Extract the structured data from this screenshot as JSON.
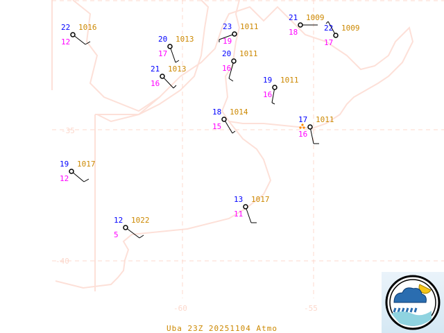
{
  "map": {
    "grid_labels": {
      "lon": [
        "-60",
        "-55"
      ],
      "lat": [
        "-35",
        "-40"
      ]
    },
    "colors": {
      "temperature": "#0000ff",
      "pressure": "#cc8800",
      "dewpoint": "#ff00ff",
      "coast": "#fde0d8",
      "grid": "#fcd8cc",
      "barb": "#000000",
      "weather": "#ff8800"
    },
    "stations": [
      {
        "temperature": "22",
        "pressure": "1016",
        "dewpoint": "12"
      },
      {
        "temperature": "20",
        "pressure": "1013",
        "dewpoint": "17"
      },
      {
        "temperature": "21",
        "pressure": "1013",
        "dewpoint": "16"
      },
      {
        "temperature": "23",
        "pressure": "1011",
        "dewpoint": "19"
      },
      {
        "temperature": "20",
        "pressure": "1011",
        "dewpoint": "16"
      },
      {
        "temperature": "19",
        "pressure": "1011",
        "dewpoint": "16"
      },
      {
        "temperature": "18",
        "pressure": "1014",
        "dewpoint": "15"
      },
      {
        "temperature": "21",
        "pressure": "1009",
        "dewpoint": "18"
      },
      {
        "temperature": "22",
        "pressure": "1009",
        "dewpoint": "17"
      },
      {
        "temperature": "17",
        "pressure": "1011",
        "dewpoint": "16",
        "weather": "rain"
      },
      {
        "temperature": "19",
        "pressure": "1017",
        "dewpoint": "12"
      },
      {
        "temperature": "12",
        "pressure": "1022",
        "dewpoint": "5"
      },
      {
        "temperature": "13",
        "pressure": "1017",
        "dewpoint": "11"
      }
    ]
  },
  "footer": {
    "caption": "Uba 23Z 20251104 Atmo"
  },
  "logo": {
    "icon": "weather-service-logo"
  }
}
